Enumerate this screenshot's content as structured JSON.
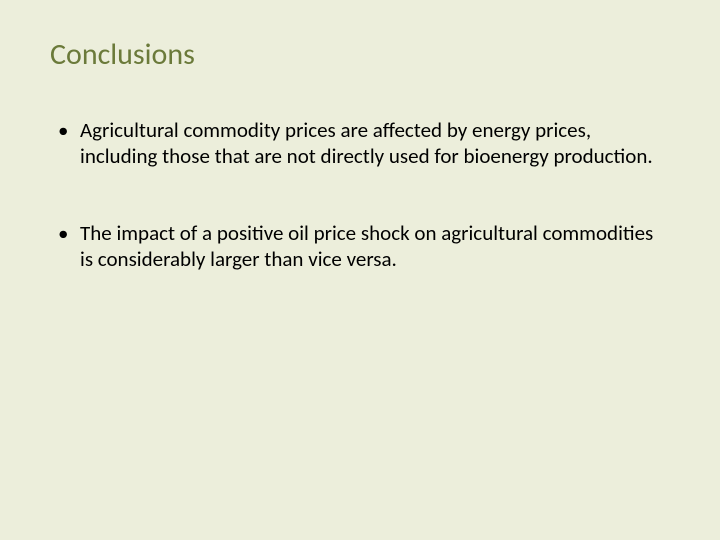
{
  "slide": {
    "title": "Conclusions",
    "bullets": [
      "Agricultural commodity prices are affected by energy prices, including those that are not directly used for bioenergy production.",
      "The impact of a positive oil price shock on agricultural commodities is considerably larger than vice versa."
    ],
    "background_color": "#eceedb",
    "title_color": "#6b7a3a",
    "text_color": "#000000",
    "title_fontsize": 30,
    "body_fontsize": 21,
    "font_family": "Calibri"
  }
}
